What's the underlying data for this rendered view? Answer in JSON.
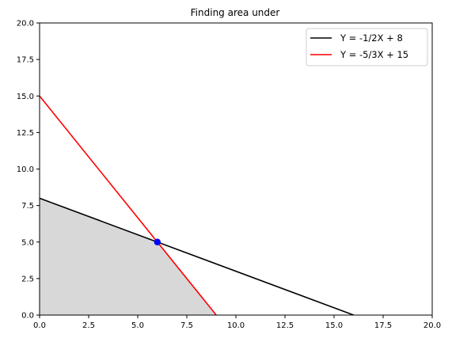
{
  "chart_data": {
    "type": "line",
    "title": "Finding area under",
    "xlabel": "",
    "ylabel": "",
    "xlim": [
      0,
      20
    ],
    "ylim": [
      0,
      20
    ],
    "x_ticks": [
      "0.0",
      "2.5",
      "5.0",
      "7.5",
      "10.0",
      "12.5",
      "15.0",
      "17.5",
      "20.0"
    ],
    "y_ticks": [
      "0.0",
      "2.5",
      "5.0",
      "7.5",
      "10.0",
      "12.5",
      "15.0",
      "17.5",
      "20.0"
    ],
    "grid": false,
    "legend_position": "upper right",
    "series": [
      {
        "name": "Y = -1/2X + 8",
        "color": "#000000",
        "x": [
          0,
          16
        ],
        "y": [
          8,
          0
        ]
      },
      {
        "name": "Y = -5/3X + 15",
        "color": "#ff0000",
        "x": [
          0,
          9
        ],
        "y": [
          15,
          0
        ]
      }
    ],
    "shaded_region": {
      "color": "#d8d8d8",
      "points": [
        [
          0,
          0
        ],
        [
          0,
          8
        ],
        [
          6,
          5
        ],
        [
          9,
          0
        ]
      ]
    },
    "intersection_point": {
      "x": 6,
      "y": 5,
      "color": "#0000ff"
    }
  }
}
